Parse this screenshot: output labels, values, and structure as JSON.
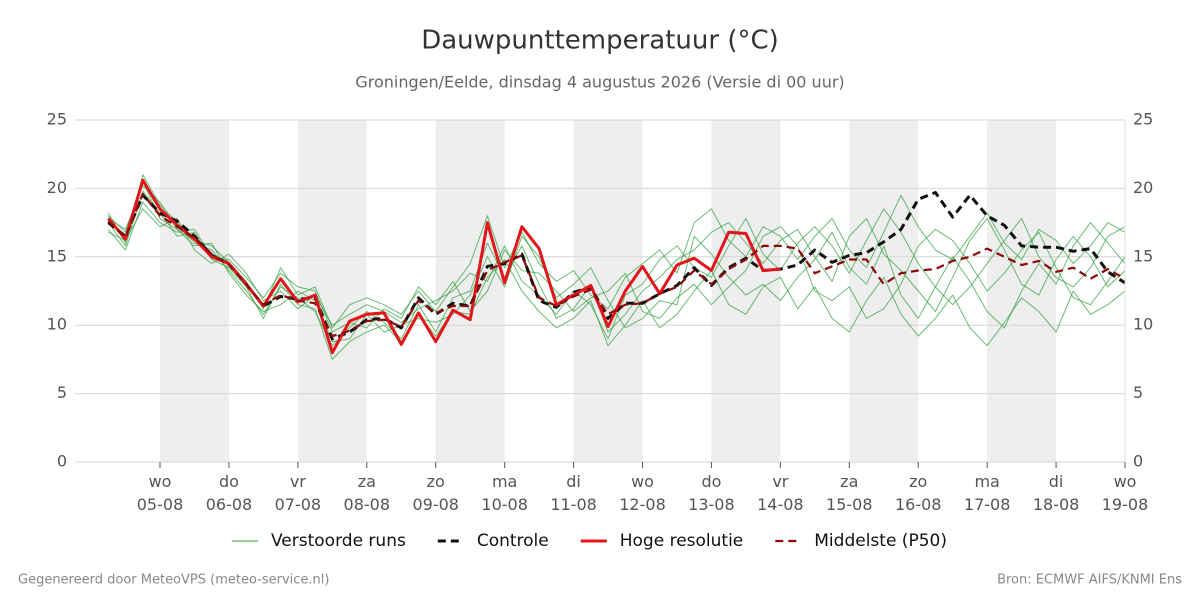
{
  "chart_data": {
    "type": "line",
    "title": "Dauwpunttemperatuur (°C)",
    "subtitle": "Groningen/Eelde, dinsdag  4 augustus 2026 (Versie di 00 uur)",
    "footer_left": "Gegenereerd door MeteoVPS (meteo-service.nl)",
    "footer_right": "Bron: ECMWF AIFS/KNMI Ens",
    "x": [
      6,
      12,
      18,
      24,
      30,
      36,
      42,
      48,
      54,
      60,
      66,
      72,
      78,
      84,
      90,
      96,
      102,
      108,
      114,
      120,
      126,
      132,
      138,
      144,
      150,
      156,
      162,
      168,
      174,
      180,
      186,
      192,
      198,
      204,
      210,
      216,
      222,
      228,
      234,
      240,
      246,
      252,
      258,
      264,
      270,
      276,
      282,
      288,
      294,
      300,
      306,
      312,
      318,
      324,
      330,
      336,
      342,
      348,
      354,
      360
    ],
    "xlim": [
      -5.6,
      360
    ],
    "xticks": [
      {
        "value": 24,
        "label": "wo\n05-08"
      },
      {
        "value": 48,
        "label": "do\n06-08"
      },
      {
        "value": 72,
        "label": "vr\n07-08"
      },
      {
        "value": 96,
        "label": "za\n08-08"
      },
      {
        "value": 120,
        "label": "zo\n09-08"
      },
      {
        "value": 144,
        "label": "ma\n10-08"
      },
      {
        "value": 168,
        "label": "di\n11-08"
      },
      {
        "value": 192,
        "label": "wo\n12-08"
      },
      {
        "value": 216,
        "label": "do\n13-08"
      },
      {
        "value": 240,
        "label": "vr\n14-08"
      },
      {
        "value": 264,
        "label": "za\n15-08"
      },
      {
        "value": 288,
        "label": "zo\n16-08"
      },
      {
        "value": 312,
        "label": "ma\n17-08"
      },
      {
        "value": 336,
        "label": "di\n18-08"
      },
      {
        "value": 360,
        "label": "wo\n19-08"
      }
    ],
    "ylim": [
      0,
      25
    ],
    "yticks": [
      0,
      5,
      10,
      15,
      20,
      25
    ],
    "grid": true,
    "legend": "bottom",
    "ensemble": {
      "name": "Verstoorde runs",
      "color": "#2e9e3a",
      "members": [
        [
          18.2,
          16.0,
          21.0,
          18.8,
          17.5,
          16.0,
          15.5,
          14.0,
          12.5,
          10.8,
          12.8,
          12.0,
          11.0,
          8.5,
          9.8,
          11.0,
          10.2,
          9.0,
          11.5,
          9.5,
          12.0,
          12.5,
          16.0,
          13.5,
          15.8,
          13.0,
          10.5,
          11.2,
          13.0,
          9.5,
          10.8,
          12.5,
          13.5,
          14.8,
          15.5,
          16.8,
          17.5,
          16.0,
          14.5,
          16.2,
          17.0,
          15.0,
          13.2,
          16.5,
          17.8,
          15.2,
          14.0,
          12.5,
          11.0,
          13.5,
          16.2,
          17.8,
          15.5,
          13.0,
          12.2,
          14.8,
          16.5,
          15.0,
          12.8,
          14.0
        ],
        [
          17.0,
          15.5,
          19.0,
          17.5,
          16.8,
          17.0,
          15.0,
          14.8,
          13.5,
          12.0,
          13.8,
          12.8,
          12.5,
          9.5,
          10.2,
          9.8,
          11.2,
          10.5,
          12.8,
          11.5,
          13.2,
          11.0,
          12.5,
          15.5,
          14.0,
          13.8,
          12.5,
          11.0,
          12.0,
          12.5,
          13.8,
          11.0,
          10.5,
          12.0,
          13.0,
          11.5,
          12.8,
          14.0,
          16.5,
          17.2,
          15.8,
          12.5,
          11.8,
          12.8,
          10.5,
          11.2,
          13.0,
          15.8,
          17.0,
          16.2,
          14.5,
          12.5,
          13.8,
          15.5,
          16.8,
          14.2,
          12.0,
          11.5,
          13.2,
          15.0
        ],
        [
          17.8,
          17.0,
          20.2,
          19.0,
          17.0,
          15.8,
          16.0,
          13.8,
          12.2,
          11.0,
          11.5,
          12.5,
          11.8,
          8.8,
          9.0,
          10.8,
          9.5,
          10.0,
          10.5,
          10.2,
          10.8,
          12.2,
          15.0,
          12.8,
          16.5,
          15.0,
          12.0,
          13.0,
          14.2,
          11.8,
          9.8,
          10.5,
          11.8,
          11.5,
          16.5,
          15.2,
          13.5,
          12.2,
          13.0,
          11.8,
          13.5,
          14.8,
          16.8,
          14.2,
          13.0,
          15.8,
          12.2,
          10.5,
          12.8,
          15.0,
          13.2,
          11.0,
          9.8,
          12.5,
          14.5,
          13.0,
          15.8,
          17.5,
          16.0,
          14.5
        ],
        [
          16.8,
          16.2,
          18.5,
          17.2,
          17.8,
          15.5,
          14.5,
          15.2,
          13.8,
          11.8,
          12.5,
          11.2,
          12.2,
          10.0,
          10.8,
          11.5,
          11.0,
          10.2,
          11.2,
          11.8,
          12.5,
          13.8,
          13.2,
          15.8,
          13.2,
          12.2,
          10.8,
          12.5,
          11.5,
          9.0,
          12.2,
          13.0,
          14.8,
          15.8,
          14.2,
          13.5,
          15.8,
          17.8,
          15.2,
          14.0,
          16.0,
          17.2,
          15.8,
          13.8,
          16.2,
          18.5,
          16.8,
          14.5,
          12.8,
          11.5,
          12.8,
          14.5,
          16.2,
          17.8,
          15.0,
          13.5,
          12.8,
          14.2,
          16.5,
          17.2
        ],
        [
          17.5,
          15.8,
          19.8,
          18.2,
          16.5,
          16.8,
          14.8,
          14.2,
          12.8,
          10.5,
          13.0,
          11.5,
          11.2,
          7.5,
          8.8,
          9.5,
          10.0,
          8.8,
          10.8,
          9.2,
          11.0,
          10.8,
          13.5,
          14.8,
          12.5,
          11.0,
          9.8,
          10.5,
          11.8,
          8.5,
          10.0,
          11.8,
          9.8,
          10.8,
          12.5,
          14.0,
          11.5,
          10.8,
          12.8,
          13.5,
          11.2,
          12.8,
          10.5,
          9.5,
          11.8,
          13.5,
          10.8,
          9.2,
          10.5,
          12.2,
          9.8,
          8.5,
          10.2,
          12.0,
          11.0,
          9.5,
          12.5,
          10.8,
          11.5,
          12.5
        ],
        [
          18.0,
          16.8,
          20.5,
          17.8,
          17.0,
          16.2,
          15.8,
          14.6,
          13.2,
          11.2,
          14.2,
          12.2,
          12.8,
          9.8,
          11.5,
          12.0,
          11.5,
          10.8,
          12.5,
          11.0,
          12.8,
          14.5,
          18.0,
          14.2,
          16.8,
          14.5,
          13.2,
          14.0,
          12.2,
          11.2,
          13.5,
          14.5,
          15.5,
          13.8,
          17.5,
          18.5,
          16.2,
          15.0,
          17.2,
          16.5,
          14.8,
          16.5,
          17.8,
          15.5,
          14.2,
          16.8,
          19.5,
          17.2,
          15.5,
          14.8,
          16.5,
          18.2,
          16.0,
          14.8,
          17.0,
          16.2,
          14.5,
          15.8,
          17.5,
          16.8
        ]
      ]
    },
    "series": [
      {
        "name": "Controle",
        "color": "#111111",
        "dashed": true,
        "width": 3,
        "values": [
          17.5,
          16.5,
          19.5,
          18.2,
          17.6,
          16.5,
          15.1,
          14.5,
          13.0,
          11.4,
          12.1,
          11.9,
          12.0,
          9.0,
          9.5,
          10.4,
          10.5,
          9.8,
          12.0,
          10.8,
          11.6,
          11.4,
          14.3,
          14.5,
          15.2,
          11.8,
          11.3,
          12.4,
          12.8,
          10.5,
          11.6,
          11.6,
          12.3,
          12.9,
          14.2,
          12.9,
          14.2,
          14.9,
          14.0,
          14.1,
          14.4,
          15.5,
          14.6,
          15.1,
          15.3,
          16.1,
          17.0,
          19.2,
          19.7,
          17.9,
          19.5,
          18.0,
          17.3,
          15.8,
          15.7,
          15.7,
          15.4,
          15.6,
          13.9,
          13.1
        ]
      },
      {
        "name": "Hoge resolutie",
        "color": "#e3141a",
        "dashed": false,
        "width": 3,
        "values": [
          17.8,
          16.3,
          20.6,
          18.5,
          17.3,
          16.3,
          15.0,
          14.5,
          13.0,
          11.4,
          13.4,
          11.7,
          12.2,
          8.0,
          10.3,
          10.8,
          10.9,
          8.6,
          10.9,
          8.8,
          11.1,
          10.4,
          17.5,
          13.1,
          17.2,
          15.6,
          11.5,
          12.2,
          12.9,
          9.9,
          12.5,
          14.3,
          12.3,
          14.4,
          14.9,
          14.0,
          16.8,
          16.7,
          14.0,
          14.1,
          null,
          null,
          null,
          null,
          null,
          null,
          null,
          null,
          null,
          null,
          null,
          null,
          null,
          null,
          null,
          null,
          null,
          null,
          null,
          null
        ]
      },
      {
        "name": "Middelste (P50)",
        "color": "#8b0a0a",
        "dashed": true,
        "width": 2.2,
        "values": [
          17.6,
          16.4,
          19.6,
          18.0,
          17.2,
          16.4,
          15.2,
          14.4,
          13.0,
          11.5,
          12.2,
          11.8,
          11.6,
          9.2,
          9.6,
          10.3,
          10.4,
          9.9,
          11.8,
          10.9,
          11.4,
          11.4,
          14.0,
          14.6,
          15.1,
          12.0,
          11.4,
          12.1,
          12.6,
          10.8,
          11.5,
          11.6,
          12.3,
          12.8,
          14.0,
          13.0,
          14.1,
          14.8,
          15.8,
          15.8,
          15.6,
          13.8,
          14.3,
          14.8,
          14.8,
          13.0,
          13.8,
          14.0,
          14.1,
          14.7,
          15.0,
          15.6,
          15.0,
          14.4,
          14.7,
          13.9,
          14.2,
          13.4,
          14.1,
          13.4
        ]
      }
    ]
  }
}
